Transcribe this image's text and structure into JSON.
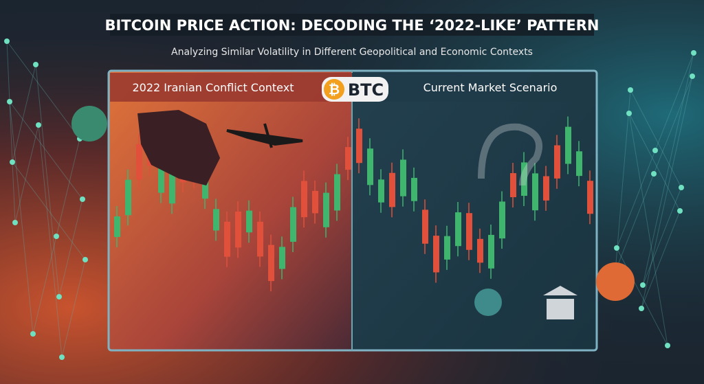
{
  "header": {
    "title": "BITCOIN PRICE ACTION: DECODING THE ‘2022-LIKE’ PATTERN",
    "subtitle": "Analyzing Similar Volatility in Different Geopolitical and Economic Contexts"
  },
  "panel": {
    "left_label": "2022 Iranian Conflict Context",
    "badge": "BTC",
    "right_label": "Current Market Scenario"
  }
}
